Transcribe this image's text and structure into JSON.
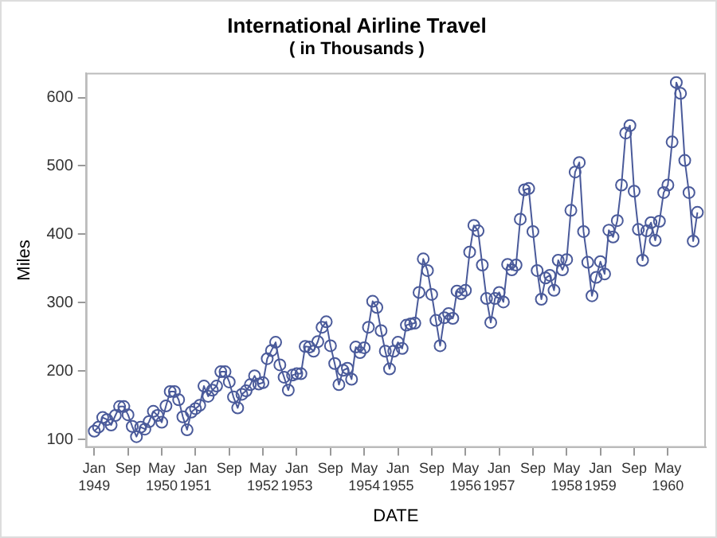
{
  "chart_data": {
    "type": "line",
    "title": "International Airline Travel",
    "subtitle": "( in Thousands )",
    "xlabel": "DATE",
    "ylabel": "Miles",
    "x": [
      "1949-01",
      "1949-02",
      "1949-03",
      "1949-04",
      "1949-05",
      "1949-06",
      "1949-07",
      "1949-08",
      "1949-09",
      "1949-10",
      "1949-11",
      "1949-12",
      "1950-01",
      "1950-02",
      "1950-03",
      "1950-04",
      "1950-05",
      "1950-06",
      "1950-07",
      "1950-08",
      "1950-09",
      "1950-10",
      "1950-11",
      "1950-12",
      "1951-01",
      "1951-02",
      "1951-03",
      "1951-04",
      "1951-05",
      "1951-06",
      "1951-07",
      "1951-08",
      "1951-09",
      "1951-10",
      "1951-11",
      "1951-12",
      "1952-01",
      "1952-02",
      "1952-03",
      "1952-04",
      "1952-05",
      "1952-06",
      "1952-07",
      "1952-08",
      "1952-09",
      "1952-10",
      "1952-11",
      "1952-12",
      "1953-01",
      "1953-02",
      "1953-03",
      "1953-04",
      "1953-05",
      "1953-06",
      "1953-07",
      "1953-08",
      "1953-09",
      "1953-10",
      "1953-11",
      "1953-12",
      "1954-01",
      "1954-02",
      "1954-03",
      "1954-04",
      "1954-05",
      "1954-06",
      "1954-07",
      "1954-08",
      "1954-09",
      "1954-10",
      "1954-11",
      "1954-12",
      "1955-01",
      "1955-02",
      "1955-03",
      "1955-04",
      "1955-05",
      "1955-06",
      "1955-07",
      "1955-08",
      "1955-09",
      "1955-10",
      "1955-11",
      "1955-12",
      "1956-01",
      "1956-02",
      "1956-03",
      "1956-04",
      "1956-05",
      "1956-06",
      "1956-07",
      "1956-08",
      "1956-09",
      "1956-10",
      "1956-11",
      "1956-12",
      "1957-01",
      "1957-02",
      "1957-03",
      "1957-04",
      "1957-05",
      "1957-06",
      "1957-07",
      "1957-08",
      "1957-09",
      "1957-10",
      "1957-11",
      "1957-12",
      "1958-01",
      "1958-02",
      "1958-03",
      "1958-04",
      "1958-05",
      "1958-06",
      "1958-07",
      "1958-08",
      "1958-09",
      "1958-10",
      "1958-11",
      "1958-12",
      "1959-01",
      "1959-02",
      "1959-03",
      "1959-04",
      "1959-05",
      "1959-06",
      "1959-07",
      "1959-08",
      "1959-09",
      "1959-10",
      "1959-11",
      "1959-12",
      "1960-01",
      "1960-02",
      "1960-03",
      "1960-04",
      "1960-05",
      "1960-06",
      "1960-07",
      "1960-08",
      "1960-09",
      "1960-10",
      "1960-11",
      "1960-12"
    ],
    "series": [
      {
        "color": "#4a5a9a",
        "values": [
          112,
          118,
          132,
          129,
          121,
          135,
          148,
          148,
          136,
          119,
          104,
          118,
          115,
          126,
          141,
          135,
          125,
          149,
          170,
          170,
          158,
          133,
          114,
          140,
          145,
          150,
          178,
          163,
          172,
          178,
          199,
          199,
          184,
          162,
          146,
          166,
          171,
          180,
          193,
          181,
          183,
          218,
          230,
          242,
          209,
          191,
          172,
          194,
          196,
          196,
          236,
          235,
          229,
          243,
          264,
          272,
          237,
          211,
          180,
          201,
          204,
          188,
          235,
          227,
          234,
          264,
          302,
          293,
          259,
          229,
          203,
          229,
          242,
          233,
          267,
          269,
          270,
          315,
          364,
          347,
          312,
          274,
          237,
          278,
          284,
          277,
          317,
          313,
          318,
          374,
          413,
          405,
          355,
          306,
          271,
          306,
          315,
          301,
          356,
          348,
          355,
          422,
          465,
          467,
          404,
          347,
          305,
          336,
          340,
          318,
          362,
          348,
          363,
          435,
          491,
          505,
          404,
          359,
          310,
          337,
          360,
          342,
          406,
          396,
          420,
          472,
          548,
          559,
          463,
          407,
          362,
          405,
          417,
          391,
          419,
          461,
          472,
          535,
          622,
          606,
          508,
          461,
          390,
          432
        ]
      }
    ],
    "xlim": [
      "1948-11",
      "1961-02"
    ],
    "xticks": [
      {
        "value": "1949-01",
        "label": "Jan\n1949"
      },
      {
        "value": "1949-09",
        "label": "Sep"
      },
      {
        "value": "1950-05",
        "label": "May\n1950"
      },
      {
        "value": "1951-01",
        "label": "Jan\n1951"
      },
      {
        "value": "1951-09",
        "label": "Sep"
      },
      {
        "value": "1952-05",
        "label": "May\n1952"
      },
      {
        "value": "1953-01",
        "label": "Jan\n1953"
      },
      {
        "value": "1953-09",
        "label": "Sep"
      },
      {
        "value": "1954-05",
        "label": "May\n1954"
      },
      {
        "value": "1955-01",
        "label": "Jan\n1955"
      },
      {
        "value": "1955-09",
        "label": "Sep"
      },
      {
        "value": "1956-05",
        "label": "May\n1956"
      },
      {
        "value": "1957-01",
        "label": "Jan\n1957"
      },
      {
        "value": "1957-09",
        "label": "Sep"
      },
      {
        "value": "1958-05",
        "label": "May\n1958"
      },
      {
        "value": "1959-01",
        "label": "Jan\n1959"
      },
      {
        "value": "1959-09",
        "label": "Sep"
      },
      {
        "value": "1960-05",
        "label": "May\n1960"
      }
    ],
    "ylim": [
      88,
      636
    ],
    "yticks": [
      100,
      200,
      300,
      400,
      500,
      600
    ],
    "grid": false,
    "legend": false,
    "marker": "circle",
    "line_style": "solid"
  }
}
